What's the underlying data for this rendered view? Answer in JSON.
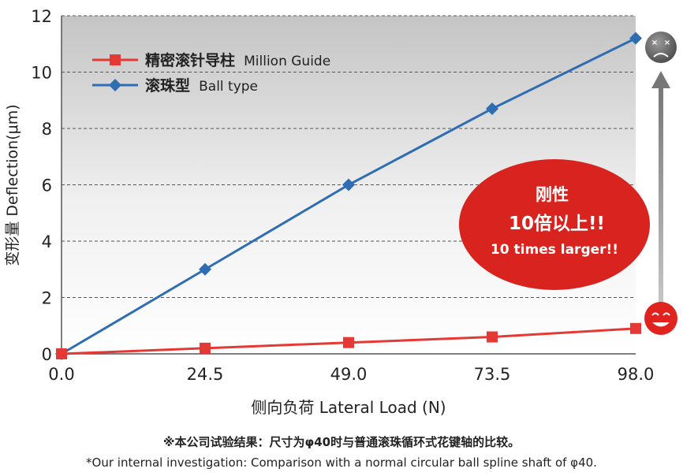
{
  "chart_data": {
    "type": "line",
    "x": [
      0.0,
      24.5,
      49.0,
      73.5,
      98.0
    ],
    "x_tick_labels": [
      "0.0",
      "24.5",
      "49.0",
      "73.5",
      "98.0"
    ],
    "y_ticks": [
      0,
      2,
      4,
      6,
      8,
      10,
      12
    ],
    "xlim": [
      0,
      98
    ],
    "ylim": [
      0,
      12
    ],
    "xlabel": "侧向负荷 Lateral Load (N)",
    "ylabel": "变形量 Deflection(μm)",
    "grid": "horizontal dashed",
    "legend_position": "top-left",
    "series": [
      {
        "name": "精密滚针导柱 Million Guide",
        "name_cn": "精密滚针导柱",
        "name_en": "Million Guide",
        "marker": "square",
        "color": "#e53935",
        "values": [
          0.0,
          0.2,
          0.4,
          0.6,
          0.9
        ]
      },
      {
        "name": "滚珠型 Ball type",
        "name_cn": "滚珠型",
        "name_en": "Ball type",
        "marker": "diamond",
        "color": "#2f6db3",
        "values": [
          0.0,
          3.0,
          6.0,
          8.7,
          11.2
        ]
      }
    ],
    "annotation": {
      "line1": "刚性",
      "line2": "10倍以上!!",
      "line3": "10 times larger!!",
      "color": "#d9231f"
    },
    "icons": {
      "top": "sad-face-icon",
      "bottom": "happy-face-icon",
      "arrow": "up-arrow-icon"
    }
  },
  "footnote": {
    "cn": "※本公司试验结果：尺寸为φ40时与普通滚珠循环式花键轴的比较。",
    "en": "*Our internal investigation: Comparison with a normal circular ball spline shaft of φ40."
  }
}
